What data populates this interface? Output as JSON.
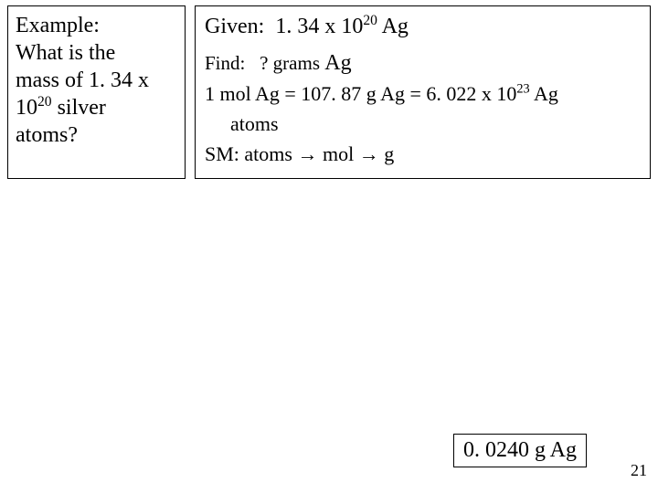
{
  "example": {
    "heading": "Example:",
    "question_l1": "What is the",
    "question_l2_a": "mass of 1. 34 x",
    "question_l2_b": "10",
    "question_l2_exp": "20",
    "question_l2_c": " silver",
    "question_l3": "atoms?"
  },
  "given": {
    "label": "Given:",
    "value_a": "1. 34 x 10",
    "value_exp": "20",
    "value_b": " Ag"
  },
  "find": {
    "label": "Find:",
    "value": "? grams ",
    "ag": "Ag"
  },
  "rel": {
    "line1_a": "1 mol Ag = 107. 87 g Ag = 6. 022 x 10",
    "line1_exp": "23",
    "line1_b": " Ag",
    "line2": "atoms"
  },
  "sm": {
    "label": "SM:",
    "path_a": "atoms ",
    "arrow1": "→",
    "path_b": " mol ",
    "arrow2": "→",
    "path_c": " g"
  },
  "answer": "0. 0240 g Ag",
  "page": "21",
  "colors": {
    "bg": "#ffffff",
    "border": "#000000",
    "text": "#000000"
  }
}
